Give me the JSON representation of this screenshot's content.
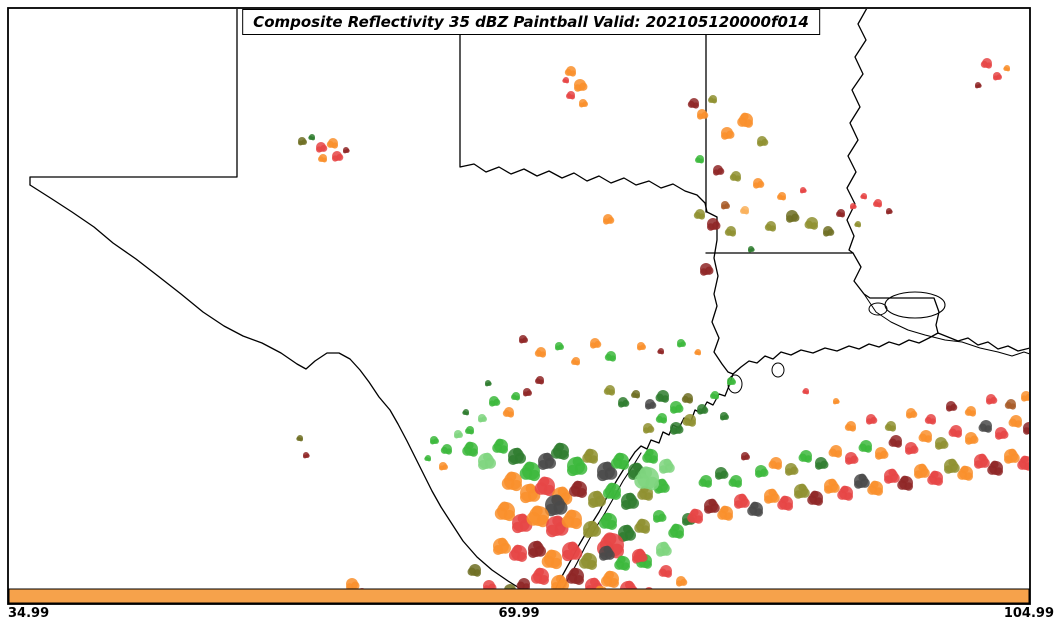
{
  "figure": {
    "title": "Composite Reflectivity 35 dBZ Paintball Valid: 202105120000f014"
  },
  "colorbar": {
    "color": "#f6a24b",
    "ticks": [
      "34.99",
      "69.99",
      "104.99"
    ]
  },
  "palette": [
    "#3cb93c",
    "#7fd57f",
    "#2f7d2f",
    "#f98f2b",
    "#f9b05a",
    "#e64545",
    "#8f2727",
    "#8f9130",
    "#6e6e23",
    "#4a4a4a",
    "#a85c28"
  ],
  "paintballs": [
    [
      302,
      141,
      4,
      8
    ],
    [
      312,
      137,
      3,
      2
    ],
    [
      321,
      147,
      5,
      5
    ],
    [
      333,
      143,
      5,
      3
    ],
    [
      337,
      156,
      5,
      5
    ],
    [
      323,
      158,
      4,
      3
    ],
    [
      346,
      150,
      3,
      6
    ],
    [
      571,
      71,
      5,
      3
    ],
    [
      580,
      85,
      6,
      3
    ],
    [
      571,
      95,
      4,
      5
    ],
    [
      583,
      103,
      4,
      3
    ],
    [
      566,
      80,
      3,
      5
    ],
    [
      608,
      219,
      5,
      3
    ],
    [
      300,
      438,
      3,
      8
    ],
    [
      306,
      455,
      3,
      6
    ],
    [
      694,
      103,
      5,
      6
    ],
    [
      702,
      114,
      5,
      3
    ],
    [
      713,
      99,
      4,
      7
    ],
    [
      727,
      133,
      6,
      3
    ],
    [
      746,
      120,
      7,
      3
    ],
    [
      762,
      141,
      5,
      7
    ],
    [
      700,
      159,
      4,
      0
    ],
    [
      718,
      170,
      5,
      6
    ],
    [
      736,
      176,
      5,
      7
    ],
    [
      758,
      183,
      5,
      3
    ],
    [
      700,
      214,
      5,
      7
    ],
    [
      713,
      224,
      6,
      6
    ],
    [
      731,
      231,
      5,
      7
    ],
    [
      706,
      269,
      6,
      6
    ],
    [
      771,
      226,
      5,
      7
    ],
    [
      792,
      216,
      6,
      8
    ],
    [
      812,
      223,
      6,
      7
    ],
    [
      828,
      231,
      5,
      8
    ],
    [
      841,
      213,
      4,
      6
    ],
    [
      853,
      206,
      3,
      5
    ],
    [
      864,
      196,
      3,
      5
    ],
    [
      751,
      249,
      3,
      2
    ],
    [
      782,
      196,
      4,
      3
    ],
    [
      803,
      190,
      3,
      5
    ],
    [
      745,
      210,
      4,
      4
    ],
    [
      725,
      205,
      4,
      10
    ],
    [
      987,
      63,
      5,
      5
    ],
    [
      997,
      76,
      4,
      5
    ],
    [
      1007,
      68,
      3,
      3
    ],
    [
      978,
      85,
      3,
      6
    ],
    [
      878,
      203,
      4,
      5
    ],
    [
      889,
      211,
      3,
      6
    ],
    [
      858,
      224,
      3,
      7
    ],
    [
      523,
      339,
      4,
      6
    ],
    [
      541,
      352,
      5,
      3
    ],
    [
      559,
      346,
      4,
      0
    ],
    [
      576,
      361,
      4,
      3
    ],
    [
      595,
      343,
      5,
      3
    ],
    [
      611,
      356,
      5,
      0
    ],
    [
      641,
      346,
      4,
      3
    ],
    [
      661,
      351,
      3,
      6
    ],
    [
      681,
      343,
      4,
      0
    ],
    [
      698,
      352,
      3,
      3
    ],
    [
      731,
      381,
      4,
      0
    ],
    [
      540,
      380,
      4,
      6
    ],
    [
      527,
      392,
      4,
      6
    ],
    [
      509,
      412,
      5,
      3
    ],
    [
      494,
      401,
      5,
      0
    ],
    [
      516,
      396,
      4,
      0
    ],
    [
      482,
      418,
      4,
      1
    ],
    [
      470,
      430,
      4,
      0
    ],
    [
      458,
      434,
      4,
      1
    ],
    [
      447,
      449,
      5,
      0
    ],
    [
      434,
      440,
      4,
      0
    ],
    [
      428,
      458,
      3,
      0
    ],
    [
      443,
      466,
      4,
      3
    ],
    [
      466,
      412,
      3,
      2
    ],
    [
      488,
      383,
      3,
      2
    ],
    [
      610,
      390,
      5,
      7
    ],
    [
      623,
      402,
      5,
      2
    ],
    [
      636,
      394,
      4,
      8
    ],
    [
      650,
      404,
      5,
      9
    ],
    [
      663,
      396,
      6,
      2
    ],
    [
      676,
      407,
      6,
      0
    ],
    [
      688,
      398,
      5,
      8
    ],
    [
      702,
      409,
      5,
      2
    ],
    [
      690,
      420,
      6,
      7
    ],
    [
      676,
      428,
      6,
      2
    ],
    [
      662,
      418,
      5,
      0
    ],
    [
      648,
      428,
      5,
      7
    ],
    [
      715,
      395,
      4,
      0
    ],
    [
      724,
      416,
      4,
      2
    ],
    [
      471,
      449,
      7,
      0
    ],
    [
      486,
      461,
      8,
      1
    ],
    [
      501,
      446,
      7,
      0
    ],
    [
      516,
      456,
      8,
      2
    ],
    [
      531,
      471,
      9,
      0
    ],
    [
      546,
      461,
      8,
      9
    ],
    [
      561,
      451,
      8,
      2
    ],
    [
      576,
      466,
      9,
      0
    ],
    [
      591,
      456,
      7,
      7
    ],
    [
      606,
      471,
      9,
      9
    ],
    [
      621,
      461,
      8,
      0
    ],
    [
      636,
      471,
      8,
      2
    ],
    [
      651,
      456,
      7,
      0
    ],
    [
      666,
      466,
      7,
      1
    ],
    [
      513,
      481,
      9,
      3
    ],
    [
      529,
      493,
      9,
      3
    ],
    [
      546,
      486,
      9,
      5
    ],
    [
      561,
      496,
      9,
      3
    ],
    [
      579,
      489,
      8,
      6
    ],
    [
      596,
      499,
      8,
      7
    ],
    [
      613,
      491,
      8,
      0
    ],
    [
      629,
      501,
      8,
      2
    ],
    [
      646,
      493,
      7,
      7
    ],
    [
      661,
      486,
      7,
      0
    ],
    [
      648,
      478,
      11,
      1
    ],
    [
      555,
      505,
      10,
      9
    ],
    [
      506,
      511,
      9,
      3
    ],
    [
      521,
      523,
      9,
      5
    ],
    [
      539,
      516,
      10,
      3
    ],
    [
      556,
      526,
      10,
      5
    ],
    [
      573,
      519,
      9,
      3
    ],
    [
      591,
      529,
      8,
      7
    ],
    [
      609,
      521,
      8,
      0
    ],
    [
      626,
      533,
      8,
      2
    ],
    [
      643,
      526,
      7,
      7
    ],
    [
      659,
      516,
      6,
      0
    ],
    [
      612,
      545,
      12,
      5
    ],
    [
      501,
      546,
      8,
      3
    ],
    [
      519,
      553,
      8,
      5
    ],
    [
      536,
      549,
      8,
      6
    ],
    [
      553,
      559,
      9,
      3
    ],
    [
      571,
      551,
      9,
      5
    ],
    [
      589,
      561,
      8,
      7
    ],
    [
      606,
      553,
      7,
      9
    ],
    [
      623,
      563,
      7,
      0
    ],
    [
      639,
      556,
      7,
      5
    ],
    [
      541,
      576,
      8,
      5
    ],
    [
      559,
      583,
      8,
      3
    ],
    [
      576,
      576,
      8,
      6
    ],
    [
      593,
      586,
      8,
      5
    ],
    [
      611,
      579,
      8,
      3
    ],
    [
      628,
      589,
      8,
      5
    ],
    [
      561,
      596,
      7,
      6
    ],
    [
      581,
      599,
      7,
      5
    ],
    [
      601,
      593,
      7,
      3
    ],
    [
      619,
      598,
      6,
      5
    ],
    [
      645,
      561,
      7,
      0
    ],
    [
      663,
      549,
      7,
      1
    ],
    [
      677,
      531,
      7,
      0
    ],
    [
      688,
      519,
      6,
      2
    ],
    [
      475,
      570,
      6,
      8
    ],
    [
      489,
      586,
      6,
      5
    ],
    [
      497,
      597,
      6,
      3
    ],
    [
      510,
      590,
      6,
      8
    ],
    [
      524,
      584,
      6,
      6
    ],
    [
      352,
      584,
      6,
      3
    ],
    [
      362,
      593,
      5,
      5
    ],
    [
      344,
      593,
      4,
      3
    ],
    [
      696,
      516,
      7,
      5
    ],
    [
      711,
      506,
      7,
      6
    ],
    [
      726,
      513,
      7,
      3
    ],
    [
      741,
      501,
      7,
      5
    ],
    [
      756,
      509,
      7,
      9
    ],
    [
      771,
      496,
      7,
      3
    ],
    [
      786,
      503,
      7,
      5
    ],
    [
      801,
      491,
      7,
      7
    ],
    [
      816,
      498,
      7,
      6
    ],
    [
      831,
      486,
      7,
      3
    ],
    [
      846,
      493,
      7,
      5
    ],
    [
      861,
      481,
      7,
      9
    ],
    [
      876,
      488,
      7,
      3
    ],
    [
      891,
      476,
      7,
      5
    ],
    [
      906,
      483,
      7,
      6
    ],
    [
      921,
      471,
      7,
      3
    ],
    [
      936,
      478,
      7,
      5
    ],
    [
      951,
      466,
      7,
      7
    ],
    [
      966,
      473,
      7,
      3
    ],
    [
      981,
      461,
      7,
      5
    ],
    [
      996,
      468,
      7,
      6
    ],
    [
      1011,
      456,
      7,
      3
    ],
    [
      1026,
      463,
      7,
      5
    ],
    [
      761,
      471,
      6,
      0
    ],
    [
      776,
      463,
      6,
      3
    ],
    [
      791,
      469,
      6,
      7
    ],
    [
      806,
      456,
      6,
      0
    ],
    [
      821,
      463,
      6,
      2
    ],
    [
      836,
      451,
      6,
      3
    ],
    [
      851,
      458,
      6,
      5
    ],
    [
      866,
      446,
      6,
      0
    ],
    [
      881,
      453,
      6,
      3
    ],
    [
      896,
      441,
      6,
      6
    ],
    [
      911,
      448,
      6,
      5
    ],
    [
      926,
      436,
      6,
      3
    ],
    [
      941,
      443,
      6,
      7
    ],
    [
      956,
      431,
      6,
      5
    ],
    [
      971,
      438,
      6,
      3
    ],
    [
      986,
      426,
      6,
      9
    ],
    [
      1001,
      433,
      6,
      5
    ],
    [
      1016,
      421,
      6,
      3
    ],
    [
      1029,
      428,
      6,
      6
    ],
    [
      851,
      426,
      5,
      3
    ],
    [
      871,
      419,
      5,
      5
    ],
    [
      891,
      426,
      5,
      7
    ],
    [
      911,
      413,
      5,
      3
    ],
    [
      931,
      419,
      5,
      5
    ],
    [
      951,
      406,
      5,
      6
    ],
    [
      971,
      411,
      5,
      3
    ],
    [
      991,
      399,
      5,
      5
    ],
    [
      1011,
      404,
      5,
      10
    ],
    [
      1026,
      396,
      5,
      3
    ],
    [
      706,
      481,
      6,
      0
    ],
    [
      721,
      473,
      6,
      2
    ],
    [
      736,
      481,
      6,
      0
    ],
    [
      745,
      456,
      4,
      6
    ],
    [
      666,
      571,
      6,
      5
    ],
    [
      681,
      581,
      5,
      3
    ],
    [
      649,
      592,
      5,
      5
    ],
    [
      640,
      556,
      6,
      5
    ],
    [
      806,
      391,
      3,
      5
    ],
    [
      836,
      401,
      3,
      3
    ]
  ]
}
